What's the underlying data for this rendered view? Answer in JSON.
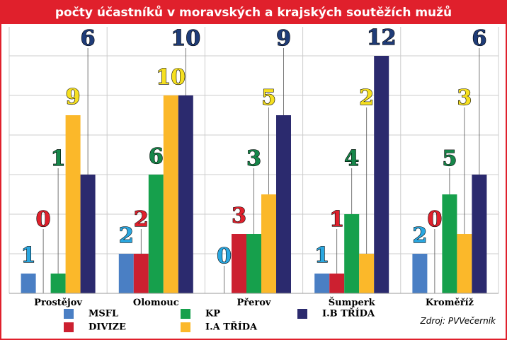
{
  "chart_data": {
    "type": "bar",
    "title": "počty účastníků v moravských a krajských soutěžích mužů",
    "categories": [
      "Prostějov",
      "Olomouc",
      "Přerov",
      "Šumperk",
      "Kroměříž"
    ],
    "series": [
      {
        "name": "MSFL",
        "color": "#4a7fc4",
        "values": [
          1,
          2,
          0,
          1,
          2
        ]
      },
      {
        "name": "DIVIZE",
        "color": "#cc2030",
        "values": [
          0,
          2,
          3,
          1,
          0
        ]
      },
      {
        "name": "KP",
        "color": "#16a04c",
        "values": [
          1,
          6,
          3,
          4,
          5
        ]
      },
      {
        "name": "I.A TŘÍDA",
        "color": "#fbb82a",
        "values": [
          9,
          10,
          5,
          2,
          3
        ]
      },
      {
        "name": "I.B TŘÍDA",
        "color": "#2b2a6e",
        "values": [
          6,
          10,
          9,
          12,
          6
        ]
      }
    ],
    "label_colors": [
      "#2aa7e0",
      "#e0202c",
      "#16874a",
      "#f6e020",
      "#1f3c78"
    ],
    "ylim": [
      0,
      13
    ],
    "yticks": [
      0,
      2,
      4,
      6,
      8,
      10,
      12
    ],
    "grid": true,
    "source": "Zdroj: PVVečerník"
  }
}
